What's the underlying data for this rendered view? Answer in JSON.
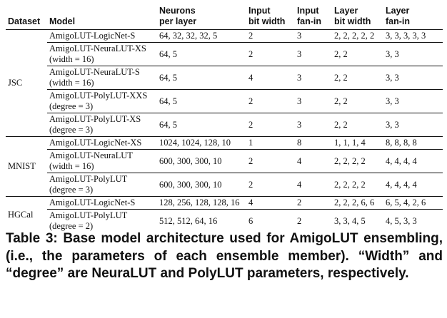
{
  "table": {
    "headers": {
      "dataset": "Dataset",
      "model": "Model",
      "neurons": [
        "Neurons",
        "per layer"
      ],
      "input_bit_width": [
        "Input",
        "bit width"
      ],
      "input_fan_in": [
        "Input",
        "fan-in"
      ],
      "layer_bit_width": [
        "Layer",
        "bit width"
      ],
      "layer_fan_in": [
        "Layer",
        "fan-in"
      ]
    },
    "groups": [
      {
        "dataset": "JSC",
        "rows": [
          {
            "model": [
              "AmigoLUT-LogicNet-S"
            ],
            "neurons": "64, 32, 32, 32, 5",
            "input_bit_width": "2",
            "input_fan_in": "3",
            "layer_bit_width": "2, 2, 2, 2, 2",
            "layer_fan_in": "3, 3, 3, 3, 3"
          },
          {
            "model": [
              "AmigoLUT-NeuraLUT-XS",
              "(width = 16)"
            ],
            "neurons": "64, 5",
            "input_bit_width": "2",
            "input_fan_in": "3",
            "layer_bit_width": "2, 2",
            "layer_fan_in": "3, 3"
          },
          {
            "model": [
              "AmigoLUT-NeuraLUT-S",
              "(width = 16)"
            ],
            "neurons": "64, 5",
            "input_bit_width": "4",
            "input_fan_in": "3",
            "layer_bit_width": "2, 2",
            "layer_fan_in": "3, 3"
          },
          {
            "model": [
              "AmigoLUT-PolyLUT-XXS",
              "(degree = 3)"
            ],
            "neurons": "64, 5",
            "input_bit_width": "2",
            "input_fan_in": "3",
            "layer_bit_width": "2, 2",
            "layer_fan_in": "3, 3"
          },
          {
            "model": [
              "AmigoLUT-PolyLUT-XS",
              "(degree = 3)"
            ],
            "neurons": "64, 5",
            "input_bit_width": "2",
            "input_fan_in": "3",
            "layer_bit_width": "2, 2",
            "layer_fan_in": "3, 3"
          }
        ]
      },
      {
        "dataset": "MNIST",
        "rows": [
          {
            "model": [
              "AmigoLUT-LogicNet-XS"
            ],
            "neurons": "1024, 1024, 128, 10",
            "input_bit_width": "1",
            "input_fan_in": "8",
            "layer_bit_width": "1, 1, 1, 4",
            "layer_fan_in": "8, 8, 8, 8"
          },
          {
            "model": [
              "AmigoLUT-NeuraLUT",
              "(width = 16)"
            ],
            "neurons": "600, 300, 300, 10",
            "input_bit_width": "2",
            "input_fan_in": "4",
            "layer_bit_width": "2, 2, 2, 2",
            "layer_fan_in": "4, 4, 4, 4"
          },
          {
            "model": [
              "AmigoLUT-PolyLUT",
              "(degree = 3)"
            ],
            "neurons": "600, 300, 300, 10",
            "input_bit_width": "2",
            "input_fan_in": "4",
            "layer_bit_width": "2, 2, 2, 2",
            "layer_fan_in": "4, 4, 4, 4"
          }
        ]
      },
      {
        "dataset": "HGCal",
        "rows": [
          {
            "model": [
              "AmigoLUT-LogicNet-S"
            ],
            "neurons": "128, 256, 128, 128, 16",
            "input_bit_width": "4",
            "input_fan_in": "2",
            "layer_bit_width": "2, 2, 2, 6, 6",
            "layer_fan_in": "6, 5, 4, 2, 6"
          },
          {
            "model": [
              "AmigoLUT-PolyLUT",
              "(degree = 2)"
            ],
            "neurons": "512, 512, 64, 16",
            "input_bit_width": "6",
            "input_fan_in": "2",
            "layer_bit_width": "3, 3, 4, 5",
            "layer_fan_in": "4, 5, 3, 3"
          }
        ]
      }
    ]
  },
  "caption": "Table 3: Base model architecture used for AmigoLUT ensembling, (i.e., the parameters of each ensemble member). “Width” and “degree” are NeuraLUT and PolyLUT parameters, respectively."
}
